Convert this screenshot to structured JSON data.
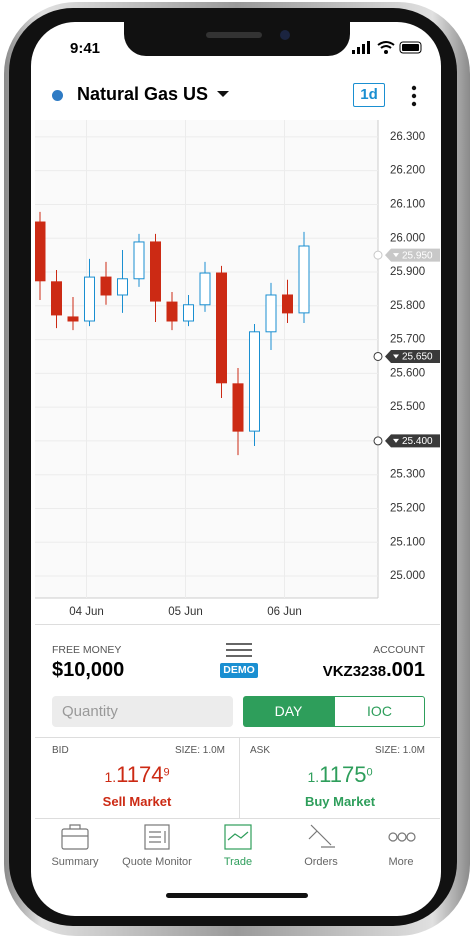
{
  "status": {
    "time": "9:41"
  },
  "header": {
    "instrument": "Natural Gas US",
    "timeframe": "1d"
  },
  "chart_data": {
    "type": "candlestick",
    "categories": [
      null,
      null,
      null,
      "04 Jun",
      null,
      null,
      null,
      null,
      null,
      "05 Jun",
      null,
      null,
      null,
      null,
      null,
      "06 Jun",
      null
    ],
    "open": [
      26.048,
      25.871,
      25.767,
      25.755,
      25.885,
      25.832,
      25.88,
      25.989,
      25.811,
      25.755,
      25.803,
      25.897,
      25.569,
      25.429,
      25.723,
      25.832,
      25.779
    ],
    "high": [
      26.078,
      25.906,
      25.826,
      25.939,
      25.93,
      25.965,
      26.013,
      26.013,
      25.841,
      25.832,
      25.93,
      25.918,
      25.616,
      25.746,
      25.868,
      25.877,
      26.019
    ],
    "low": [
      25.817,
      25.734,
      25.728,
      25.74,
      25.803,
      25.779,
      25.856,
      25.752,
      25.728,
      25.74,
      25.782,
      25.527,
      25.358,
      25.385,
      25.669,
      25.749,
      25.749
    ],
    "close": [
      25.874,
      25.773,
      25.755,
      25.885,
      25.832,
      25.88,
      25.989,
      25.814,
      25.755,
      25.803,
      25.897,
      25.572,
      25.429,
      25.723,
      25.832,
      25.779,
      25.977
    ],
    "ylim": [
      24.935,
      26.35
    ],
    "yticks": [
      {
        "value": 25.0,
        "label": "25.000"
      },
      {
        "value": 25.1,
        "label": "25.100"
      },
      {
        "value": 25.2,
        "label": "25.200"
      },
      {
        "value": 25.3,
        "label": "25.300"
      },
      {
        "value": 25.4,
        "label": "25.400"
      },
      {
        "value": 25.5,
        "label": "25.500"
      },
      {
        "value": 25.6,
        "label": "25.600"
      },
      {
        "value": 25.7,
        "label": "25.700"
      },
      {
        "value": 25.8,
        "label": "25.800"
      },
      {
        "value": 25.9,
        "label": "25.900"
      },
      {
        "value": 26.0,
        "label": "26.000"
      },
      {
        "value": 26.1,
        "label": "26.100"
      },
      {
        "value": 26.2,
        "label": "26.200"
      },
      {
        "value": 26.3,
        "label": "26.300"
      }
    ],
    "price_lines": [
      {
        "value": 25.95,
        "label": "25.950",
        "color": "#c8c8c8"
      },
      {
        "value": 25.65,
        "label": "25.650",
        "color": "#3a3a3a"
      },
      {
        "value": 25.4,
        "label": "25.400",
        "color": "#3a3a3a"
      }
    ],
    "up_color": "#1a8fd1",
    "down_color": "#cc2a14",
    "grid": true
  },
  "account": {
    "free_money_label": "FREE MONEY",
    "free_money": "$10,000",
    "mode": "DEMO",
    "account_label": "ACCOUNT",
    "account_id": "VKZ3238",
    "account_suffix": ".001"
  },
  "order": {
    "quantity_placeholder": "Quantity",
    "durations": [
      "DAY",
      "IOC"
    ]
  },
  "bid": {
    "label": "BID",
    "size": "SIZE: 1.0M",
    "price_small": "1.",
    "price_big": "1174",
    "price_sup": "9",
    "action": "Sell Market"
  },
  "ask": {
    "label": "ASK",
    "size": "SIZE: 1.0M",
    "price_small": "1.",
    "price_big": "1175",
    "price_sup": "0",
    "action": "Buy Market"
  },
  "nav": [
    "Summary",
    "Quote Monitor",
    "Trade",
    "Orders",
    "More"
  ]
}
